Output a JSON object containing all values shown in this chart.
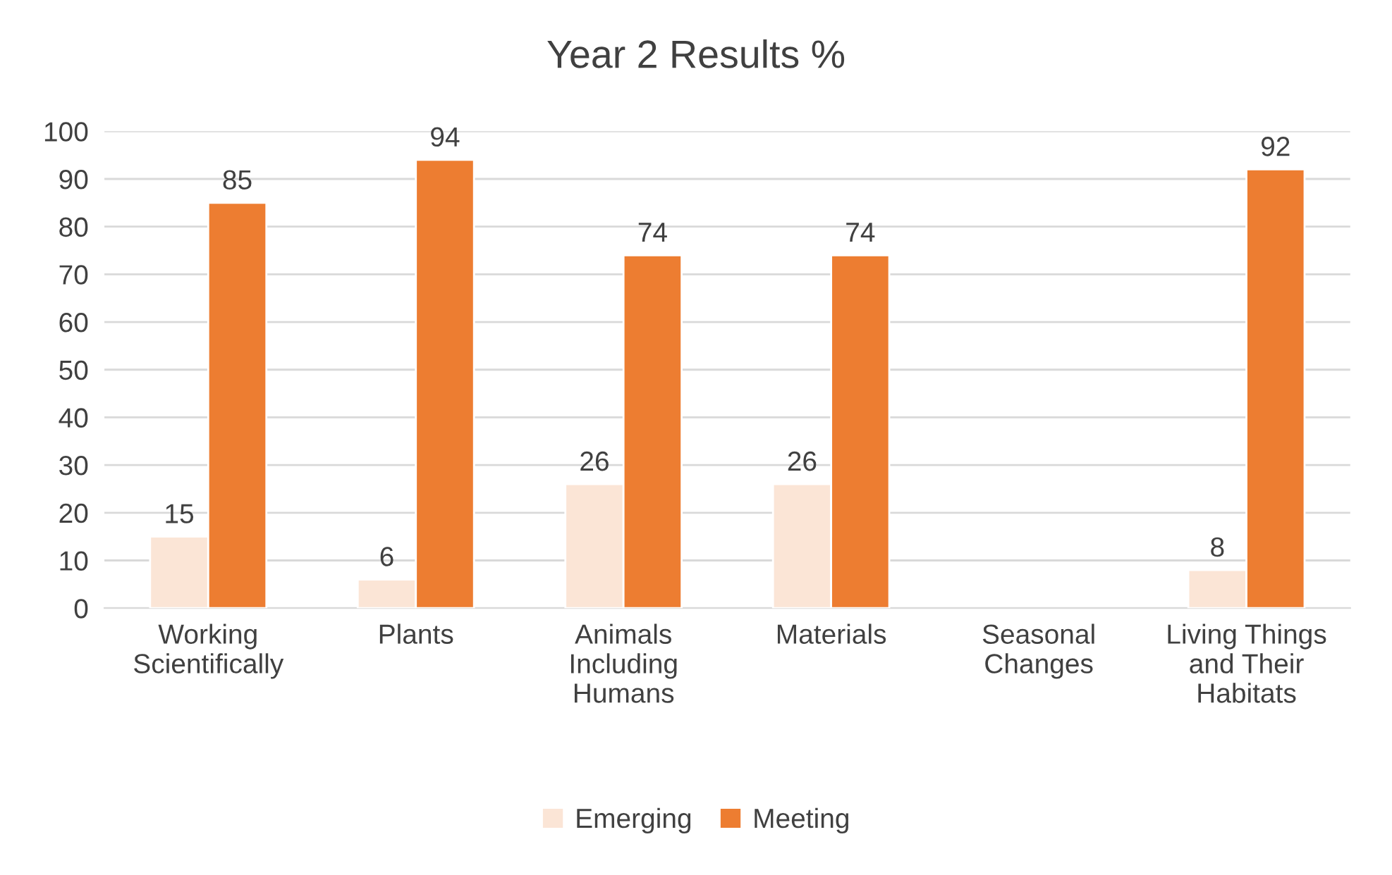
{
  "chart_data": {
    "type": "bar",
    "title": "Year 2 Results %",
    "categories": [
      "Working Scientifically",
      "Plants",
      "Animals Including Humans",
      "Materials",
      "Seasonal Changes",
      "Living Things and Their Habitats"
    ],
    "series": [
      {
        "name": "Emerging",
        "color": "#fbe5d6",
        "values": [
          15,
          6,
          26,
          26,
          null,
          8
        ]
      },
      {
        "name": "Meeting",
        "color": "#ed7d31",
        "values": [
          85,
          94,
          74,
          74,
          null,
          92
        ]
      }
    ],
    "ylim": [
      0,
      100
    ],
    "yticks": [
      0,
      10,
      20,
      30,
      40,
      50,
      60,
      70,
      80,
      90,
      100
    ],
    "grid": "y",
    "legend": "bottom",
    "data_labels": true
  }
}
